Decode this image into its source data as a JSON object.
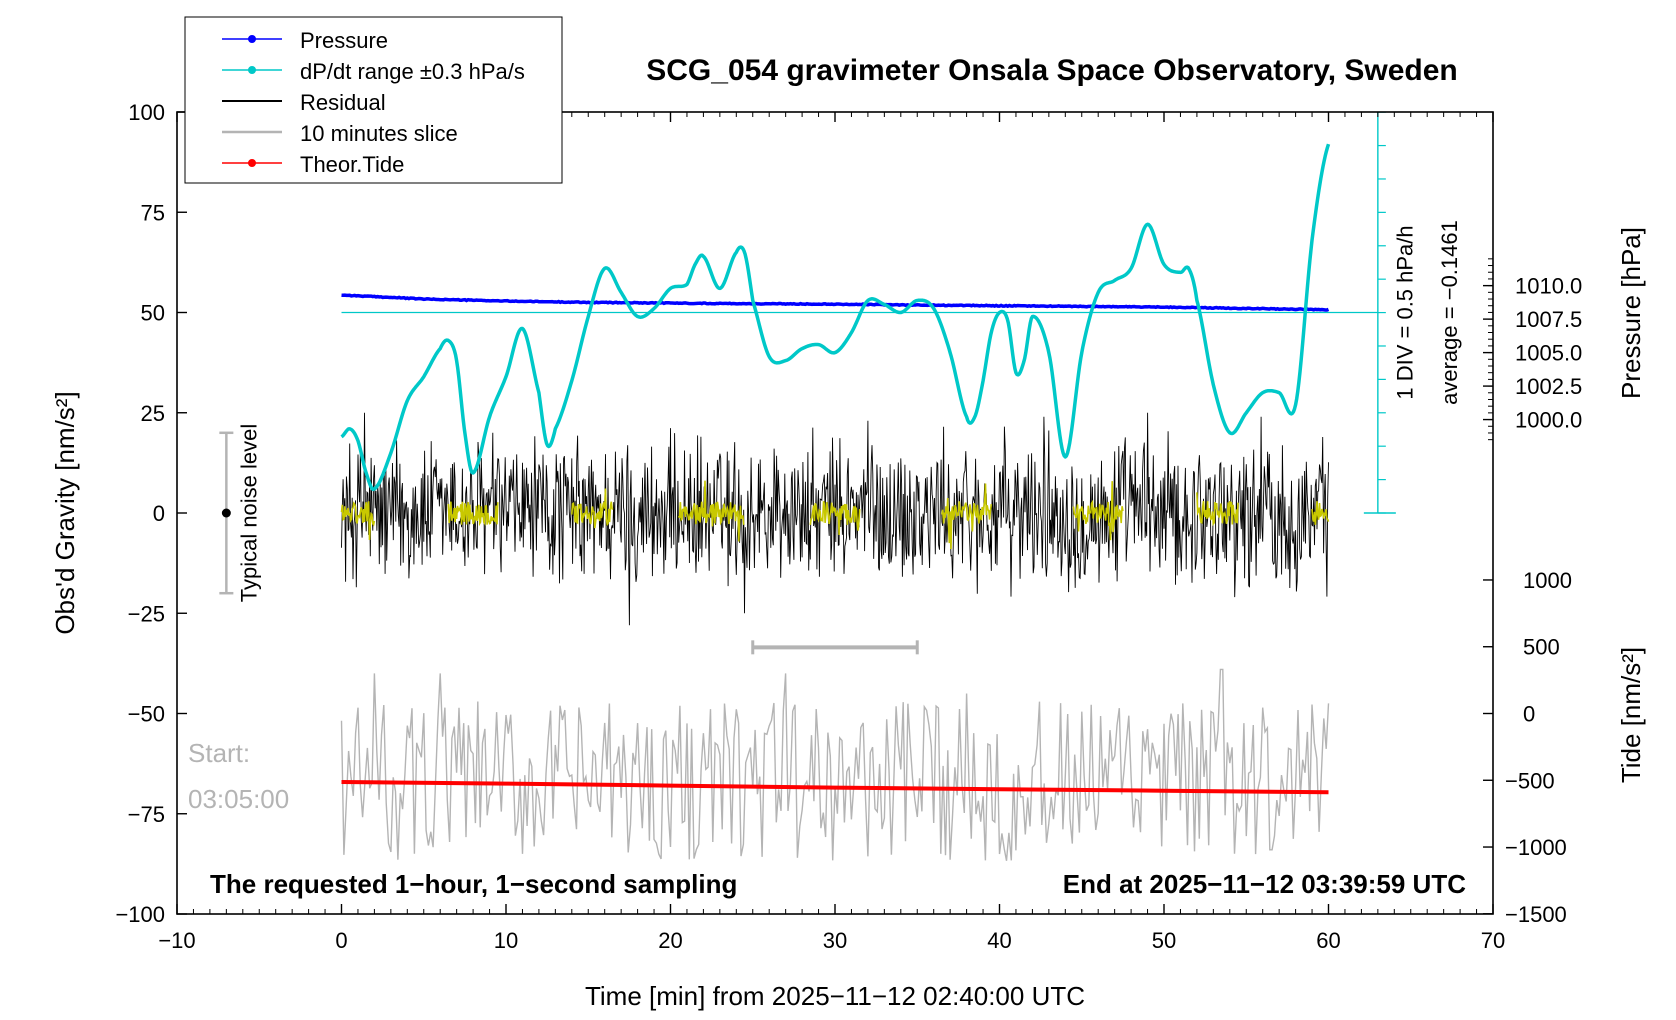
{
  "chart_data": {
    "type": "line",
    "title": "SCG_054 gravimeter Onsala Space Observatory, Sweden",
    "xlabel": "Time [min] from 2025−11−12 02:40:00 UTC",
    "ylabel": "Obs'd Gravity [nm/s²]",
    "ylabel_right_top": "Pressure [hPa]",
    "ylabel_right_bottom": "Tide [nm/s²]",
    "xlim": [
      -10,
      70
    ],
    "ylim": [
      -100,
      100
    ],
    "pressure_lim": [
      997.0,
      1012.0
    ],
    "tide_lim": [
      -1500,
      1000
    ],
    "x_ticks": [
      -10,
      0,
      10,
      20,
      30,
      40,
      50,
      60,
      70
    ],
    "x_tick_labels": [
      "−10",
      "0",
      "10",
      "20",
      "30",
      "40",
      "50",
      "60",
      "70"
    ],
    "y_ticks": [
      100,
      75,
      50,
      25,
      0,
      -25,
      -50,
      -75,
      -100
    ],
    "y_tick_labels": [
      "100",
      "75",
      "50",
      "25",
      "0",
      "−25",
      "−50",
      "−75",
      "−100"
    ],
    "pressure_ticks": [
      1010.0,
      1007.5,
      1005.0,
      1002.5,
      1000.0
    ],
    "pressure_tick_labels": [
      "1010.0",
      "1007.5",
      "1005.0",
      "1002.5",
      "1000.0"
    ],
    "tide_ticks": [
      1000,
      500,
      0,
      -500,
      -1000,
      -1500
    ],
    "tide_tick_labels": [
      "1000",
      "500",
      "0",
      "−500",
      "−1000",
      "−1500"
    ],
    "legend": {
      "position": "top-left",
      "entries": [
        {
          "label": "Pressure",
          "color": "#0000ff",
          "marker": true
        },
        {
          "label": "dP/dt range ±0.3 hPa/s",
          "color": "#00c8c8",
          "marker": true
        },
        {
          "label": "Residual",
          "color": "#000000",
          "marker": false
        },
        {
          "label": "10 minutes slice",
          "color": "#b4b4b4",
          "marker": false
        },
        {
          "label": "Theor.Tide",
          "color": "#ff0000",
          "marker": true
        }
      ]
    },
    "annotations": {
      "noise_label": "Typical noise level",
      "noise_range": [
        -20,
        20
      ],
      "noise_x": -7,
      "dpdt_label": "1 DIV = 0.5 hPa/h",
      "average_label": "average = −0.1461",
      "dpdt_axis_x": 63,
      "dpdt_zero_level": 50,
      "start_label": "Start:",
      "start_time": "03:05:00",
      "slice_bracket": [
        25,
        35
      ],
      "slice_bracket_y": -33.5,
      "footer_left": "The requested 1−hour, 1−second sampling",
      "footer_right": "End at 2025−11−12 03:39:59 UTC"
    },
    "series": [
      {
        "name": "Pressure",
        "axis": "pressure_hpa",
        "color": "#0000ff",
        "x": [
          0,
          5,
          10,
          15,
          20,
          25,
          30,
          35,
          40,
          45,
          50,
          55,
          60
        ],
        "y": [
          1009.3,
          1009.0,
          1008.85,
          1008.75,
          1008.7,
          1008.65,
          1008.62,
          1008.55,
          1008.5,
          1008.45,
          1008.4,
          1008.3,
          1008.2
        ]
      },
      {
        "name": "dP/dt",
        "axis": "gravity_scale",
        "color": "#00c8c8",
        "x": [
          0,
          0.5,
          1,
          1.5,
          2,
          3,
          4,
          5,
          6,
          6.5,
          7,
          7.5,
          8,
          9,
          10,
          11,
          12,
          12.5,
          13,
          14,
          15,
          16,
          17,
          18,
          19,
          20,
          21,
          21.5,
          22,
          23,
          24,
          24.5,
          25,
          26,
          27,
          28,
          29,
          30,
          31,
          32,
          33,
          34,
          35,
          36,
          37,
          38,
          38.5,
          39,
          39.5,
          40,
          40.5,
          41,
          41.5,
          42,
          43,
          44,
          45,
          46,
          47,
          48,
          49,
          50,
          51,
          51.5,
          52,
          53,
          54,
          55,
          56,
          57,
          58,
          59,
          60
        ],
        "y": [
          19,
          21,
          18,
          10,
          6,
          15,
          28,
          34,
          41,
          43,
          38,
          20,
          10,
          24,
          34,
          46,
          30,
          17,
          21,
          33,
          49,
          61,
          55,
          49,
          51,
          56,
          57,
          62,
          64,
          56,
          65,
          65,
          53,
          39,
          38,
          41,
          42,
          40,
          45,
          53,
          52,
          50,
          53,
          51,
          40,
          24,
          24,
          33,
          45,
          50,
          48,
          35,
          38,
          49,
          40,
          14,
          40,
          55,
          58,
          61,
          72,
          62,
          60,
          61,
          53,
          32,
          20,
          25,
          30,
          30,
          27,
          68,
          92
        ]
      },
      {
        "name": "Residual",
        "axis": "gravity",
        "color": "#000000",
        "x_range": [
          0,
          60
        ],
        "amplitude_nm_s2": 22,
        "extremes": [
          [
            1.4,
            25
          ],
          [
            9.2,
            20
          ],
          [
            17.5,
            -28
          ],
          [
            24.5,
            -25
          ],
          [
            32,
            23
          ],
          [
            42.7,
            24
          ],
          [
            49,
            25
          ],
          [
            55.9,
            24
          ]
        ]
      },
      {
        "name": "10 minutes slice",
        "axis": "gravity_offset",
        "color": "#b4b4b4",
        "x_range": [
          0,
          60
        ],
        "baseline": -67,
        "amplitude_nm_s2": 20,
        "extremes": [
          [
            2,
            -40
          ],
          [
            6,
            -40
          ],
          [
            11,
            -85
          ],
          [
            27,
            -40
          ],
          [
            38,
            -45
          ],
          [
            53.5,
            -39
          ],
          [
            56.5,
            -84
          ]
        ]
      },
      {
        "name": "10 minutes slice (overlay)",
        "axis": "gravity",
        "color": "#c8c800",
        "segments": [
          [
            0,
            2
          ],
          [
            6.5,
            9.5
          ],
          [
            14,
            16.5
          ],
          [
            20.5,
            24.5
          ],
          [
            28.5,
            31.5
          ],
          [
            36.5,
            39.5
          ],
          [
            44.5,
            47.5
          ],
          [
            52,
            54.5
          ],
          [
            59,
            60
          ]
        ],
        "amplitude_nm_s2": 3
      },
      {
        "name": "Theor.Tide",
        "axis": "tide",
        "color": "#ff0000",
        "x": [
          0,
          10,
          20,
          30,
          40,
          50,
          60
        ],
        "y": [
          -513,
          -525,
          -540,
          -555,
          -567,
          -578,
          -590
        ]
      }
    ]
  }
}
